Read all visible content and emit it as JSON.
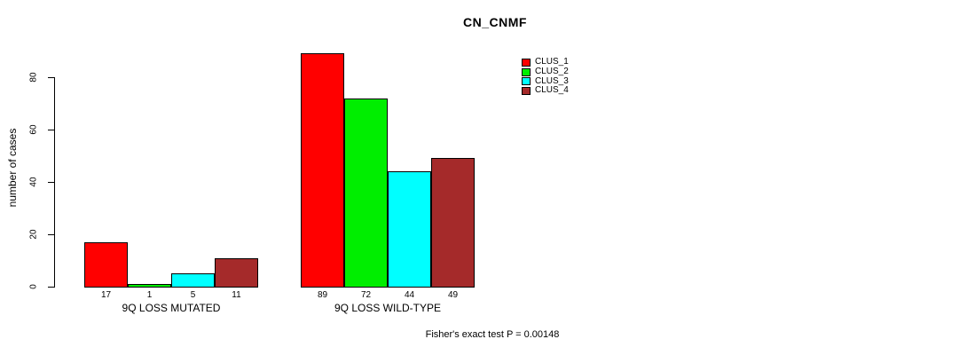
{
  "title": "CN_CNMF",
  "chart_data": {
    "type": "bar",
    "title": "CN_CNMF",
    "ylabel": "number of cases",
    "xlabel": "",
    "yticks": [
      0,
      20,
      40,
      60,
      80
    ],
    "ylim": [
      0,
      89
    ],
    "grid": false,
    "legend_position": "top-right",
    "bar_value_labels": true,
    "categories": [
      "9Q LOSS MUTATED",
      "9Q LOSS WILD-TYPE"
    ],
    "series": [
      {
        "name": "CLUS_1",
        "color": "#ff0000",
        "values": [
          17,
          89
        ]
      },
      {
        "name": "CLUS_2",
        "color": "#00ee00",
        "values": [
          1,
          72
        ]
      },
      {
        "name": "CLUS_3",
        "color": "#00ffff",
        "values": [
          5,
          44
        ]
      },
      {
        "name": "CLUS_4",
        "color": "#a52a2a",
        "values": [
          11,
          49
        ]
      }
    ],
    "annotation": "Fisher's exact test P = 0.00148"
  }
}
